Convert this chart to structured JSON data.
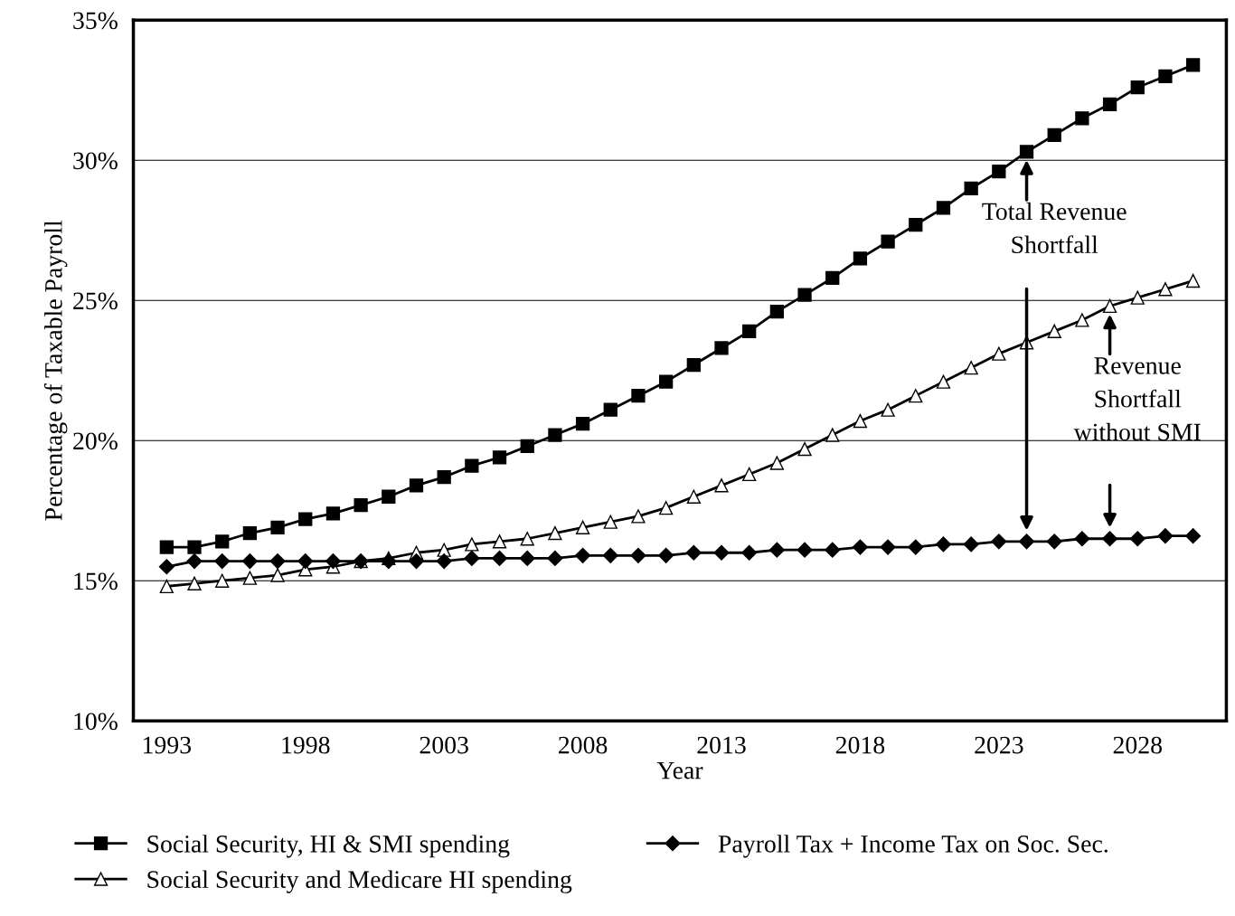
{
  "chart_data": {
    "type": "line",
    "xlabel": "Year",
    "ylabel": "Percentage of Taxable Payroll",
    "x": [
      1993,
      1994,
      1995,
      1996,
      1997,
      1998,
      1999,
      2000,
      2001,
      2002,
      2003,
      2004,
      2005,
      2006,
      2007,
      2008,
      2009,
      2010,
      2011,
      2012,
      2013,
      2014,
      2015,
      2016,
      2017,
      2018,
      2019,
      2020,
      2021,
      2022,
      2023,
      2024,
      2025,
      2026,
      2027,
      2028,
      2029,
      2030
    ],
    "series": [
      {
        "name": "Social Security, HI & SMI spending",
        "color": "#000000",
        "marker": "square",
        "values": [
          16.2,
          16.2,
          16.4,
          16.7,
          16.9,
          17.2,
          17.4,
          17.7,
          18.0,
          18.4,
          18.7,
          19.1,
          19.4,
          19.8,
          20.2,
          20.6,
          21.1,
          21.6,
          22.1,
          22.7,
          23.3,
          23.9,
          24.6,
          25.2,
          25.8,
          26.5,
          27.1,
          27.7,
          28.3,
          29.0,
          29.6,
          30.3,
          30.9,
          31.5,
          32.0,
          32.6,
          33.0,
          33.4
        ]
      },
      {
        "name": "Social Security and Medicare HI spending",
        "color": "#000000",
        "marker": "triangle",
        "values": [
          14.8,
          14.9,
          15.0,
          15.1,
          15.2,
          15.4,
          15.5,
          15.7,
          15.8,
          16.0,
          16.1,
          16.3,
          16.4,
          16.5,
          16.7,
          16.9,
          17.1,
          17.3,
          17.6,
          18.0,
          18.4,
          18.8,
          19.2,
          19.7,
          20.2,
          20.7,
          21.1,
          21.6,
          22.1,
          22.6,
          23.1,
          23.5,
          23.9,
          24.3,
          24.8,
          25.1,
          25.4,
          25.7
        ]
      },
      {
        "name": "Payroll Tax + Income Tax on Soc. Sec.",
        "color": "#000000",
        "marker": "diamond",
        "values": [
          15.5,
          15.7,
          15.7,
          15.7,
          15.7,
          15.7,
          15.7,
          15.7,
          15.7,
          15.7,
          15.7,
          15.8,
          15.8,
          15.8,
          15.8,
          15.9,
          15.9,
          15.9,
          15.9,
          16.0,
          16.0,
          16.0,
          16.1,
          16.1,
          16.1,
          16.2,
          16.2,
          16.2,
          16.3,
          16.3,
          16.4,
          16.4,
          16.4,
          16.5,
          16.5,
          16.5,
          16.6,
          16.6
        ]
      }
    ],
    "annotations": [
      {
        "text": "Total Revenue\nShortfall",
        "x": 2024,
        "y": 30.3
      },
      {
        "text": "Revenue\nShortfall\nwithout SMI",
        "x": 2027,
        "y": 24.8
      }
    ],
    "xlim": [
      1991.8,
      2031.2
    ],
    "xticks": [
      1993,
      1998,
      2003,
      2008,
      2013,
      2018,
      2023,
      2028
    ],
    "ylim": [
      10,
      35
    ],
    "yticks": [
      {
        "value": 10,
        "label": "10%"
      },
      {
        "value": 15,
        "label": "15%"
      },
      {
        "value": 20,
        "label": "20%"
      },
      {
        "value": 25,
        "label": "25%"
      },
      {
        "value": 30,
        "label": "30%"
      },
      {
        "value": 35,
        "label": "35%"
      }
    ],
    "grid": "y",
    "legend": "bottom",
    "line_style": "solid"
  }
}
